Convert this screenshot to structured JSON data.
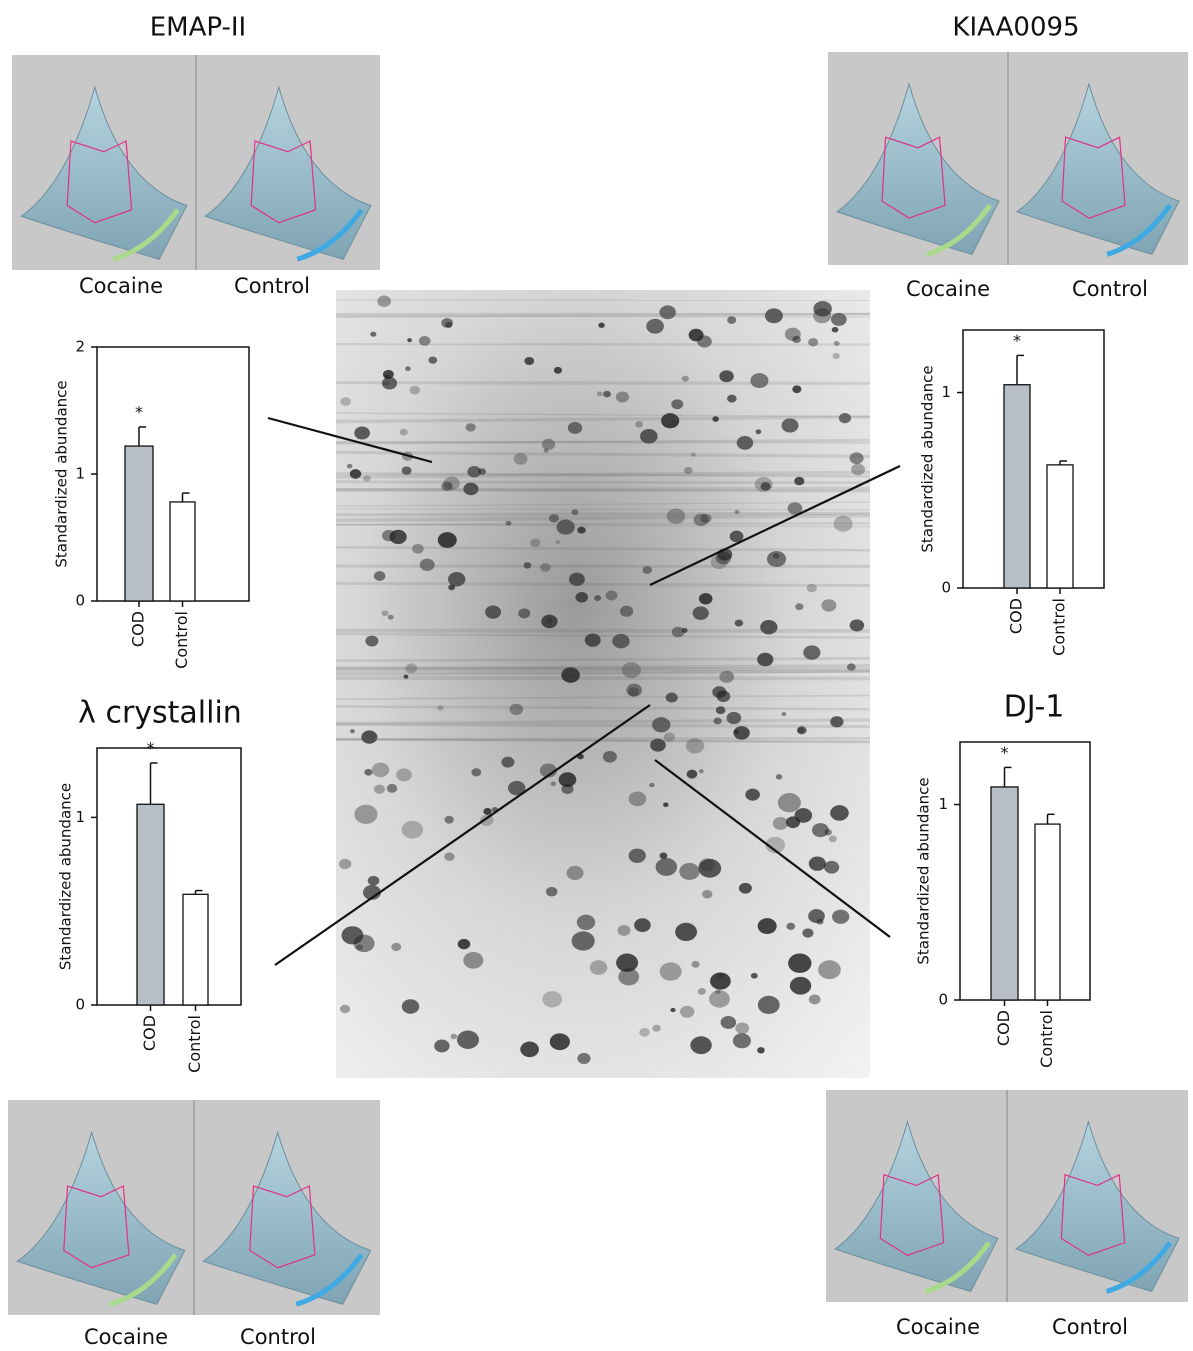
{
  "chart_data": [
    {
      "type": "bar",
      "title": "EMAP-II",
      "view_labels": [
        "Cocaine",
        "Control"
      ],
      "y_label": "Standardized abundance",
      "categories": [
        "COD",
        "Control"
      ],
      "values": [
        1.22,
        0.78
      ],
      "errors": [
        0.15,
        0.07
      ],
      "colors": [
        "#b8bec6",
        "#ffffff"
      ],
      "annotation": "*",
      "ylim": [
        0,
        2
      ],
      "yticks": [
        0,
        1,
        2
      ]
    },
    {
      "type": "bar",
      "title": "KIAA0095",
      "view_labels": [
        "Cocaine",
        "Control"
      ],
      "y_label": "Standardized abundance",
      "categories": [
        "COD",
        "Control"
      ],
      "values": [
        1.04,
        0.63
      ],
      "errors": [
        0.15,
        0.02
      ],
      "colors": [
        "#b8bec6",
        "#ffffff"
      ],
      "annotation": "*",
      "ylim": [
        0,
        1.32
      ],
      "yticks": [
        0,
        1
      ]
    },
    {
      "type": "bar",
      "title": "λ crystallin",
      "view_labels": [
        "Cocaine",
        "Control"
      ],
      "y_label": "Standardized abundance",
      "categories": [
        "COD",
        "Control"
      ],
      "values": [
        1.07,
        0.59
      ],
      "errors": [
        0.22,
        0.02
      ],
      "colors": [
        "#b8bec6",
        "#ffffff"
      ],
      "annotation": "*",
      "ylim": [
        0,
        1.37
      ],
      "yticks": [
        0,
        1
      ]
    },
    {
      "type": "bar",
      "title": "DJ-1",
      "view_labels": [
        "Cocaine",
        "Control"
      ],
      "y_label": "Standardized abundance",
      "categories": [
        "COD",
        "Control"
      ],
      "values": [
        1.09,
        0.9
      ],
      "errors": [
        0.1,
        0.05
      ],
      "colors": [
        "#b8bec6",
        "#ffffff"
      ],
      "annotation": "*",
      "ylim": [
        0,
        1.32
      ],
      "yticks": [
        0,
        1
      ]
    }
  ]
}
